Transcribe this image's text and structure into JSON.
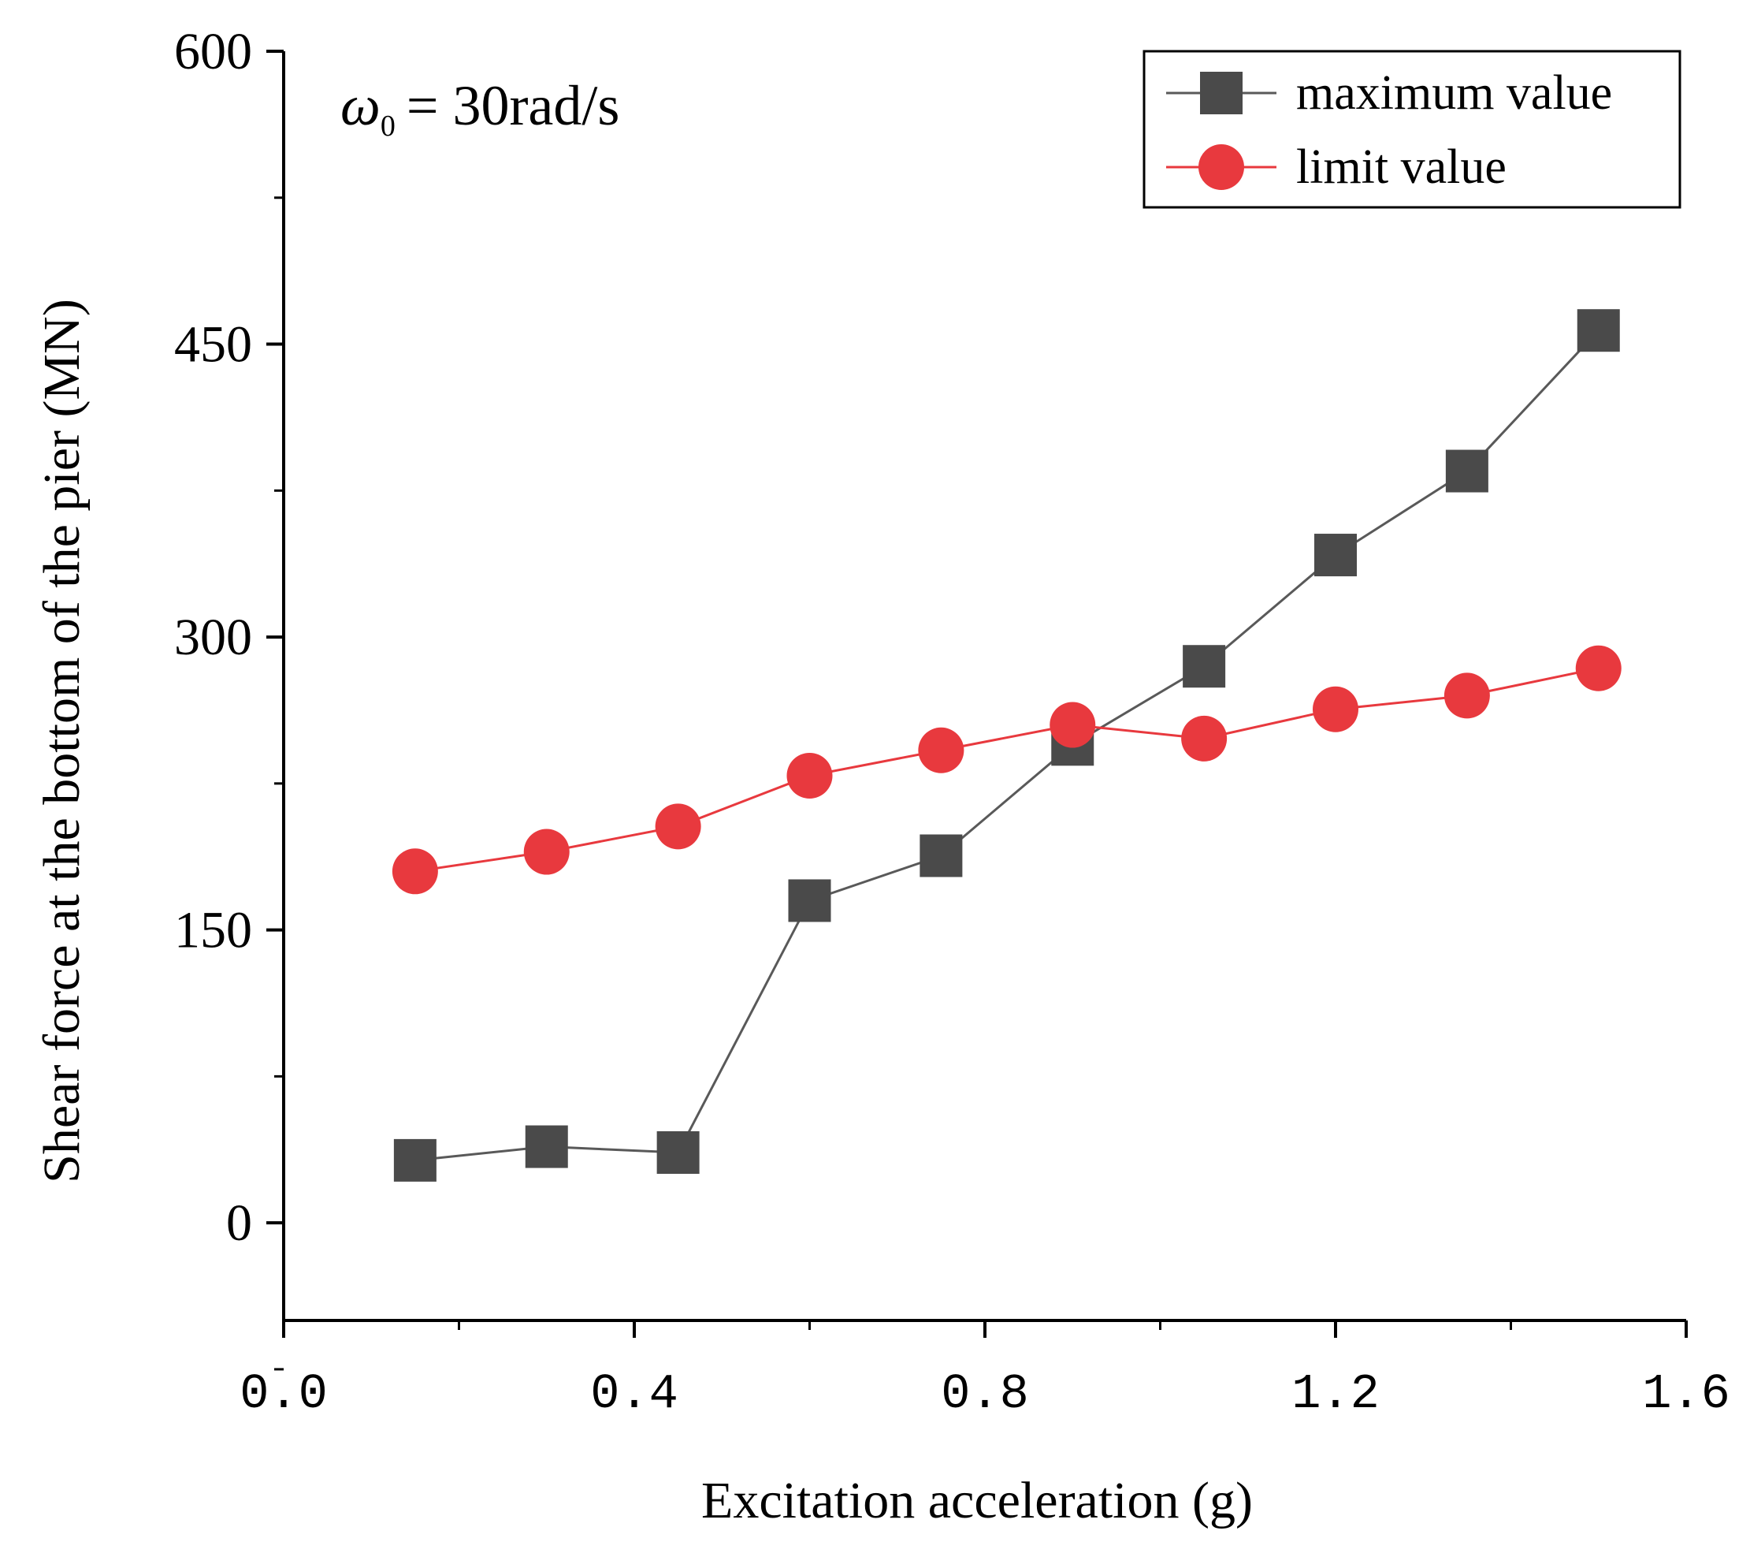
{
  "chart_data": {
    "type": "line",
    "title": "",
    "annotation": {
      "symbol": "ω",
      "subscript": "0",
      "text": "= 30rad/s"
    },
    "xlabel": "Excitation acceleration (g)",
    "ylabel": "Shear force at the bottom of the pier (MN)",
    "xlim": [
      0.0,
      1.6
    ],
    "ylim": [
      -50,
      600
    ],
    "xticks": [
      0.0,
      0.4,
      0.8,
      1.2,
      1.6
    ],
    "xtick_labels": [
      "0.0",
      "0.4",
      "0.8",
      "1.2",
      "1.6"
    ],
    "xminor": [
      0.2,
      0.6,
      1.0,
      1.4
    ],
    "yticks": [
      0,
      150,
      300,
      450,
      600
    ],
    "ytick_labels": [
      "0",
      "150",
      "300",
      "450",
      "600"
    ],
    "yminor": [
      -75,
      75,
      225,
      375,
      525
    ],
    "grid": false,
    "legend_position": "top-right",
    "x": [
      0.15,
      0.3,
      0.45,
      0.6,
      0.75,
      0.9,
      1.05,
      1.2,
      1.35,
      1.5
    ],
    "series": [
      {
        "name": "maximum value",
        "marker": "square",
        "color": "#4a4a4a",
        "line_color": "#595959",
        "values": [
          32,
          39,
          36,
          165,
          188,
          245,
          285,
          342,
          385,
          457
        ]
      },
      {
        "name": "limit value",
        "marker": "circle",
        "color": "#e8393e",
        "line_color": "#e8393e",
        "values": [
          180,
          190,
          203,
          229,
          242,
          255,
          248,
          263,
          270,
          284
        ]
      }
    ]
  }
}
